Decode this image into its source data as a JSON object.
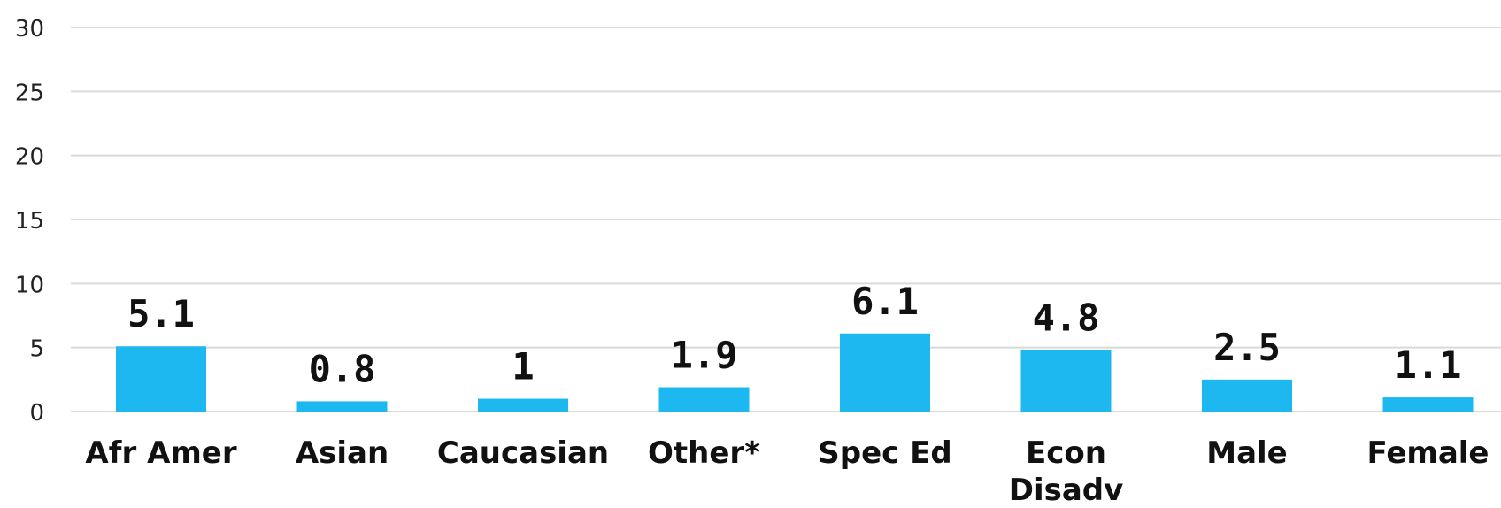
{
  "chart_data": {
    "type": "bar",
    "categories": [
      "Afr Amer",
      "Asian",
      "Caucasian",
      "Other*",
      "Spec Ed",
      "Econ Disadv",
      "Male",
      "Female"
    ],
    "values": [
      5.1,
      0.8,
      1,
      1.9,
      6.1,
      4.8,
      2.5,
      1.1
    ],
    "data_labels": [
      "5.1",
      "0.8",
      "1",
      "1.9",
      "6.1",
      "4.8",
      "2.5",
      "1.1"
    ],
    "ylim": [
      0,
      30
    ],
    "yticks": [
      0,
      5,
      10,
      15,
      20,
      25,
      30
    ],
    "grid": true,
    "bar_color": "#1db8ef",
    "title": "",
    "xlabel": "",
    "ylabel": ""
  }
}
